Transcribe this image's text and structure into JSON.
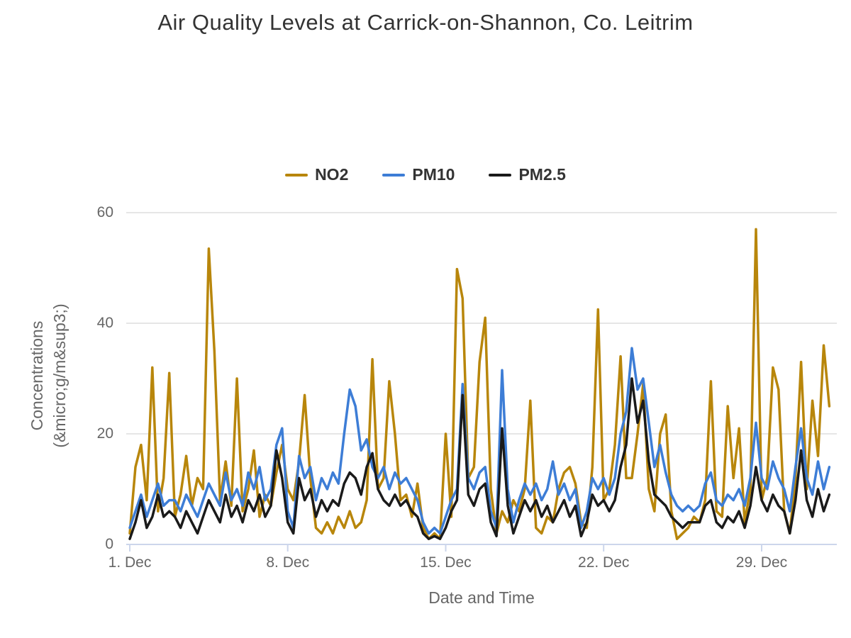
{
  "chart_data": {
    "type": "line",
    "title": "Air Quality Levels at Carrick-on-Shannon, Co. Leitrim",
    "xlabel": "Date and Time",
    "ylabel": "Concentrations (&micro;g/m&sup3;)",
    "ylabel_lines": [
      "Concentrations",
      "(&micro;g/m&sup3;)"
    ],
    "x_tick_labels": [
      "1. Dec",
      "8. Dec",
      "15. Dec",
      "22. Dec",
      "29. Dec"
    ],
    "x_tick_days": [
      0,
      7,
      14,
      21,
      28
    ],
    "y_ticks": [
      0,
      20,
      40,
      60
    ],
    "ylim": [
      0,
      60
    ],
    "xlim_days": [
      0,
      31
    ],
    "x_unit": "days since 1. Dec 00:00, samples every 0.25 day (6 h)",
    "grid": "horizontal only",
    "legend_position": "top-center",
    "colors": {
      "grid": "#E6E6E6",
      "axis_line": "#CCD6EB",
      "tick_label": "#666666",
      "title_text": "#333333"
    },
    "series": [
      {
        "name": "NO2",
        "color": "#B8860B",
        "values": [
          2,
          14,
          18,
          8,
          32,
          6,
          12,
          31,
          5,
          9,
          16,
          7,
          12,
          10,
          53.5,
          35,
          8,
          15,
          7,
          30,
          6,
          10,
          17,
          5,
          9,
          7,
          13,
          18,
          10,
          8,
          15,
          27,
          12,
          3,
          2,
          4,
          2,
          5,
          3,
          6,
          3,
          4,
          8,
          33.5,
          10,
          12,
          29.5,
          20,
          8,
          9,
          5,
          11,
          3,
          1,
          2,
          1,
          20,
          5,
          49.8,
          44.5,
          12,
          14,
          33,
          41,
          10,
          2,
          6,
          4,
          8,
          6,
          10,
          26,
          3,
          2,
          5,
          4,
          10,
          13,
          14,
          11,
          4,
          3,
          14,
          42.5,
          8,
          10,
          18,
          34,
          12,
          12,
          20,
          29,
          10,
          6,
          20,
          23.5,
          6,
          1,
          2,
          3,
          5,
          4,
          8,
          29.5,
          6,
          5,
          25,
          12,
          21,
          4,
          10,
          57,
          8,
          12,
          32,
          28,
          6,
          2,
          12,
          33,
          10,
          26,
          16,
          36,
          25
        ]
      },
      {
        "name": "PM10",
        "color": "#3D7DD6",
        "values": [
          3,
          6,
          9,
          5,
          8,
          11,
          7,
          8,
          8,
          6,
          9,
          7,
          5,
          8,
          11,
          9,
          7,
          13,
          8,
          10,
          7,
          13,
          10,
          14,
          8,
          10,
          18,
          21,
          6,
          3,
          16,
          12,
          14,
          8,
          12,
          10,
          13,
          11,
          20,
          28,
          25,
          17,
          19,
          14,
          12,
          14,
          10,
          13,
          11,
          12,
          10,
          8,
          4,
          2,
          3,
          2,
          5,
          8,
          10,
          29,
          12,
          10,
          13,
          14,
          6,
          3,
          31.5,
          10,
          4,
          8,
          11,
          9,
          11,
          8,
          10,
          15,
          9,
          11,
          8,
          10,
          3,
          6,
          12,
          10,
          12,
          9,
          12,
          20,
          24,
          35.5,
          28,
          30,
          22,
          14,
          18,
          13,
          9,
          7,
          6,
          7,
          6,
          7,
          11,
          13,
          8,
          7,
          9,
          8,
          10,
          7,
          12,
          22,
          12,
          10,
          15,
          12,
          10,
          6,
          14,
          21,
          12,
          9,
          15,
          10,
          14
        ]
      },
      {
        "name": "PM2.5",
        "color": "#1A1A1A",
        "values": [
          1,
          4,
          8,
          3,
          5,
          9,
          5,
          6,
          5,
          3,
          6,
          4,
          2,
          5,
          8,
          6,
          4,
          9,
          5,
          7,
          4,
          8,
          6,
          9,
          5,
          7,
          17,
          12,
          4,
          2,
          12,
          8,
          10,
          5,
          8,
          6,
          8,
          7,
          11,
          13,
          12,
          9,
          14,
          16.5,
          10,
          8,
          7,
          9,
          7,
          8,
          6,
          5,
          2,
          1,
          1.5,
          1,
          3,
          6,
          8,
          27,
          9,
          7,
          10,
          11,
          4,
          1.5,
          21,
          7,
          2,
          5,
          8,
          6,
          8,
          5,
          7,
          4,
          6,
          8,
          5,
          7,
          1.5,
          4,
          9,
          7,
          8,
          6,
          8,
          14,
          18,
          30,
          22,
          26,
          15,
          9,
          8,
          7,
          5,
          4,
          3,
          4,
          4,
          4,
          7,
          8,
          4,
          3,
          5,
          4,
          6,
          3,
          7,
          14,
          8,
          6,
          9,
          7,
          6,
          2,
          8,
          17,
          8,
          5,
          10,
          6,
          9
        ]
      }
    ]
  }
}
